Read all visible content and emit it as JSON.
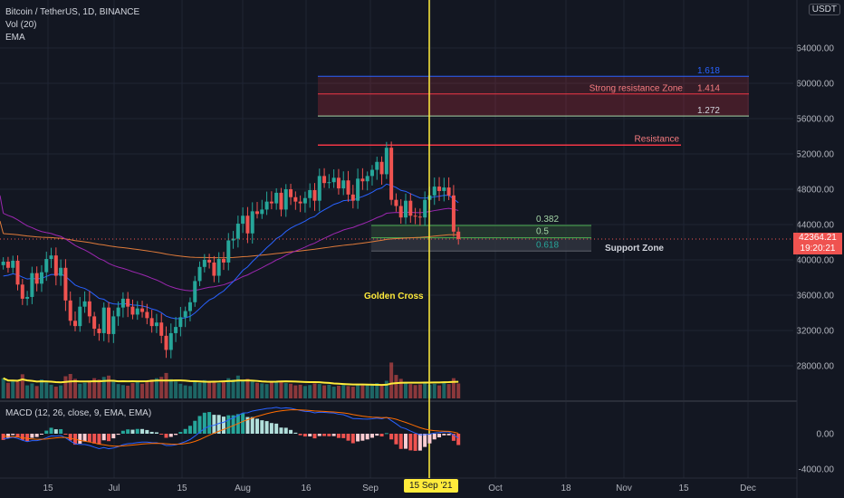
{
  "header": {
    "symbol_line": "Bitcoin / TetherUS, 1D, BINANCE",
    "volume_indicator": "Vol (20)",
    "ema_indicator": "EMA",
    "currency_button": "USDT"
  },
  "macd_legend": "MACD (12, 26, close, 9, EMA, EMA)",
  "price_tag": {
    "price": "42364.21",
    "countdown": "19:20:21"
  },
  "date_tag": "15 Sep '21",
  "colors": {
    "background": "#131722",
    "up": "#26a69a",
    "down": "#ef5350",
    "ema_fast": "#2962ff",
    "ema_mid": "#9c27b0",
    "ema_slow": "#e07b3a",
    "volume_ma": "#ffeb3b",
    "golden_cross_line": "#ffeb3b",
    "resistance": "#f23645",
    "fib_support": "#4caf50",
    "fib_blue": "#2962ff"
  },
  "chart_data": [
    {
      "type": "candlestick",
      "x_ticks": [
        "15",
        "Jul",
        "15",
        "Aug",
        "16",
        "Sep",
        "15 Sep '21",
        "Oct",
        "18",
        "Nov",
        "15",
        "Dec"
      ],
      "y_ticks": [
        "64000.00",
        "60000.00",
        "56000.00",
        "52000.00",
        "48000.00",
        "44000.00",
        "40000.00",
        "36000.00",
        "32000.00",
        "28000.00"
      ],
      "ylim": [
        24000,
        68000
      ],
      "last_price": 42364.21,
      "closes": [
        39800,
        39100,
        39900,
        37200,
        35600,
        35800,
        38500,
        37300,
        38600,
        40100,
        40500,
        38200,
        39100,
        35400,
        33100,
        32500,
        34700,
        35300,
        33600,
        32200,
        31700,
        34600,
        31600,
        33600,
        34600,
        35600,
        34700,
        33800,
        34500,
        34100,
        33400,
        32500,
        32900,
        31400,
        29800,
        31700,
        32400,
        33500,
        34200,
        35200,
        37600,
        39200,
        40000,
        39700,
        38200,
        40100,
        39700,
        42200,
        42400,
        44100,
        45000,
        43000,
        45500,
        45200,
        45700,
        46600,
        46400,
        47600,
        45700,
        48000,
        47100,
        46600,
        46400,
        47000,
        47900,
        46700,
        49500,
        48700,
        48800,
        49300,
        48100,
        49000,
        47400,
        46700,
        49200,
        48900,
        49500,
        50200,
        51100,
        49700,
        52700,
        46800,
        46100,
        44800,
        46700,
        45000,
        44900,
        44800,
        46800,
        47300,
        48300,
        47800,
        48200,
        47300,
        43200,
        42364
      ]
    },
    {
      "type": "bar",
      "name": "Vol (20)",
      "values": [
        62,
        48,
        55,
        52,
        74,
        40,
        46,
        38,
        58,
        49,
        42,
        36,
        40,
        68,
        75,
        60,
        45,
        48,
        55,
        62,
        58,
        66,
        70,
        52,
        44,
        41,
        39,
        47,
        53,
        45,
        50,
        58,
        62,
        66,
        78,
        59,
        52,
        45,
        40,
        38,
        52,
        48,
        56,
        51,
        49,
        47,
        53,
        62,
        58,
        70,
        55,
        60,
        52,
        48,
        46,
        44,
        50,
        49,
        53,
        47,
        45,
        40,
        42,
        38,
        41,
        46,
        44,
        40,
        42,
        36,
        39,
        41,
        38,
        36,
        44,
        40,
        43,
        45,
        47,
        42,
        54,
        110,
        72,
        60,
        48,
        44,
        41,
        43,
        46,
        42,
        45,
        40,
        48,
        44,
        62,
        46
      ]
    },
    {
      "type": "line",
      "name": "Support Zone",
      "fib_levels": [
        {
          "label": "1.618",
          "price": 60800
        },
        {
          "label": "1.414",
          "price": 58800
        },
        {
          "label": "1.272",
          "price": 56300
        },
        {
          "label": "0.382",
          "price": 43900
        },
        {
          "label": "0.5",
          "price": 42500
        },
        {
          "label": "0.618",
          "price": 41000
        }
      ],
      "resistance_price": 53000
    },
    {
      "type": "bar",
      "name": "MACD (12, 26, close, 9, EMA, EMA)",
      "y_ticks": [
        "0.00",
        "-4000.00"
      ],
      "ylim": [
        -5000,
        4000
      ]
    }
  ],
  "annotations": {
    "strong_resistance": "Strong resistance Zone",
    "resistance": "Resistance",
    "support_zone": "Support Zone",
    "golden_cross": "Golden Cross"
  }
}
